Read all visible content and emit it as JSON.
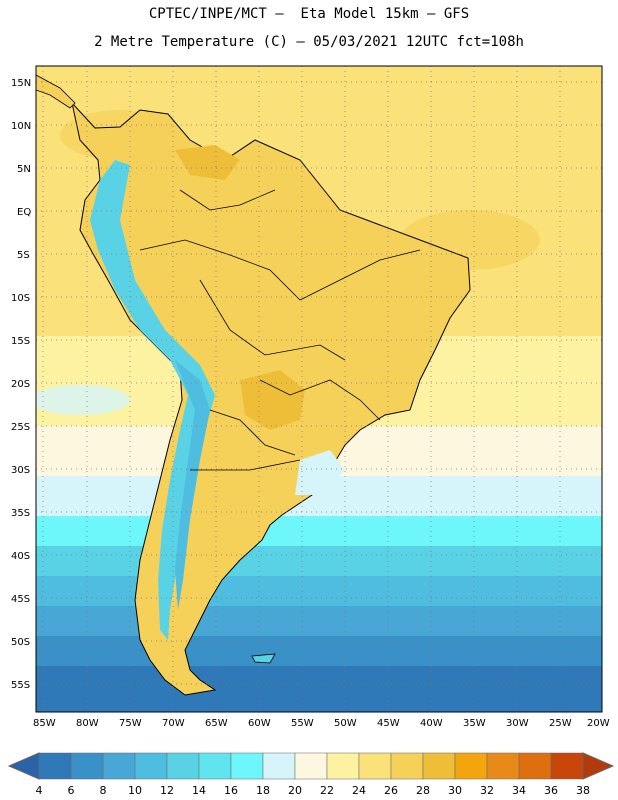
{
  "header": {
    "line1": "CPTEC/INPE/MCT –  Eta Model 15km – GFS",
    "line2": "2 Metre Temperature (C) – 05/03/2021 12UTC fct=108h"
  },
  "map": {
    "lat_labels": [
      "15N",
      "10N",
      "5N",
      "EQ",
      "5S",
      "10S",
      "15S",
      "20S",
      "25S",
      "30S",
      "35S",
      "40S",
      "45S",
      "50S",
      "55S"
    ],
    "lon_labels": [
      "85W",
      "80W",
      "75W",
      "70W",
      "65W",
      "60W",
      "55W",
      "50W",
      "45W",
      "40W",
      "35W",
      "30W",
      "25W",
      "20W"
    ]
  },
  "colorbar": {
    "labels": [
      "4",
      "6",
      "8",
      "10",
      "12",
      "14",
      "16",
      "18",
      "20",
      "22",
      "24",
      "26",
      "28",
      "30",
      "32",
      "34",
      "36",
      "38"
    ],
    "colors": [
      "#2b63a8",
      "#3079b9",
      "#3a91c8",
      "#48a7d5",
      "#4fbddf",
      "#5ad2e6",
      "#60e4ee",
      "#6ef7fa",
      "#d5f5fb",
      "#fdf7e0",
      "#fdf2a1",
      "#fbe17a",
      "#f6d15a",
      "#efbe38",
      "#f2a50c",
      "#e88a18",
      "#dd6f0f",
      "#c8460a",
      "#b23b0b"
    ]
  },
  "colors": {
    "ocean_warm": "#fbe17a",
    "ocean_mid": "#fdf2a1",
    "ocean_cold": "#3079b9",
    "land": "#f6d15a",
    "land_hot": "#efbe38",
    "andes": "#5ad2e6"
  }
}
